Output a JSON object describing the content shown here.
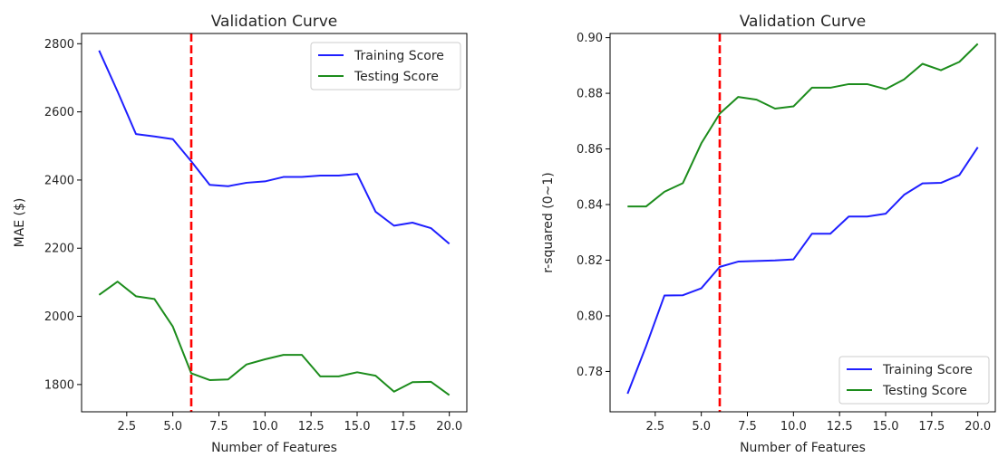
{
  "chart_data": [
    {
      "type": "line",
      "title": "Validation Curve",
      "xlabel": "Number of Features",
      "ylabel": "MAE ($)",
      "xlim": [
        0.05,
        20.95
      ],
      "ylim": [
        1720,
        2830
      ],
      "xticks": [
        2.5,
        5.0,
        7.5,
        10.0,
        12.5,
        15.0,
        17.5,
        20.0
      ],
      "xtick_labels": [
        "2.5",
        "5.0",
        "7.5",
        "10.0",
        "12.5",
        "15.0",
        "17.5",
        "20.0"
      ],
      "yticks": [
        1800,
        2000,
        2200,
        2400,
        2600,
        2800
      ],
      "ytick_labels": [
        "1800",
        "2000",
        "2200",
        "2400",
        "2600",
        "2800"
      ],
      "x": [
        1,
        2,
        3,
        4,
        5,
        6,
        7,
        8,
        9,
        10,
        11,
        12,
        13,
        14,
        15,
        16,
        17,
        18,
        19,
        20
      ],
      "series": [
        {
          "name": "Training Score",
          "color": "#1f1fff",
          "values": [
            2780,
            2660,
            2535,
            2528,
            2520,
            2455,
            2386,
            2382,
            2392,
            2396,
            2409,
            2409,
            2413,
            2413,
            2418,
            2307,
            2266,
            2275,
            2259,
            2213
          ]
        },
        {
          "name": "Testing Score",
          "color": "#1c8c1c",
          "values": [
            2063,
            2102,
            2059,
            2051,
            1970,
            1833,
            1813,
            1815,
            1859,
            1874,
            1887,
            1887,
            1824,
            1824,
            1836,
            1826,
            1779,
            1807,
            1808,
            1769
          ]
        }
      ],
      "vline": {
        "x": 6,
        "color": "#ff0000",
        "style": "dashed"
      },
      "legend_position": "upper right"
    },
    {
      "type": "line",
      "title": "Validation Curve",
      "xlabel": "Number of Features",
      "ylabel": "r-squared (0~1)",
      "xlim": [
        0.05,
        20.95
      ],
      "ylim": [
        0.7655,
        0.9015
      ],
      "xticks": [
        2.5,
        5.0,
        7.5,
        10.0,
        12.5,
        15.0,
        17.5,
        20.0
      ],
      "xtick_labels": [
        "2.5",
        "5.0",
        "7.5",
        "10.0",
        "12.5",
        "15.0",
        "17.5",
        "20.0"
      ],
      "yticks": [
        0.78,
        0.8,
        0.82,
        0.84,
        0.86,
        0.88,
        0.9
      ],
      "ytick_labels": [
        "0.78",
        "0.80",
        "0.82",
        "0.84",
        "0.86",
        "0.88",
        "0.90"
      ],
      "x": [
        1,
        2,
        3,
        4,
        5,
        6,
        7,
        8,
        9,
        10,
        11,
        12,
        13,
        14,
        15,
        16,
        17,
        18,
        19,
        20
      ],
      "series": [
        {
          "name": "Training Score",
          "color": "#1f1fff",
          "values": [
            0.772,
            0.789,
            0.8073,
            0.8074,
            0.8099,
            0.8176,
            0.8195,
            0.8197,
            0.8199,
            0.8203,
            0.8295,
            0.8295,
            0.8357,
            0.8357,
            0.8367,
            0.8435,
            0.8476,
            0.8478,
            0.8506,
            0.8606
          ]
        },
        {
          "name": "Testing Score",
          "color": "#1c8c1c",
          "values": [
            0.8393,
            0.8393,
            0.8446,
            0.8477,
            0.862,
            0.8727,
            0.8787,
            0.8777,
            0.8745,
            0.8753,
            0.882,
            0.882,
            0.8833,
            0.8833,
            0.8815,
            0.885,
            0.8906,
            0.8883,
            0.8913,
            0.8978
          ]
        }
      ],
      "vline": {
        "x": 6,
        "color": "#ff0000",
        "style": "dashed"
      },
      "legend_position": "lower right"
    }
  ]
}
